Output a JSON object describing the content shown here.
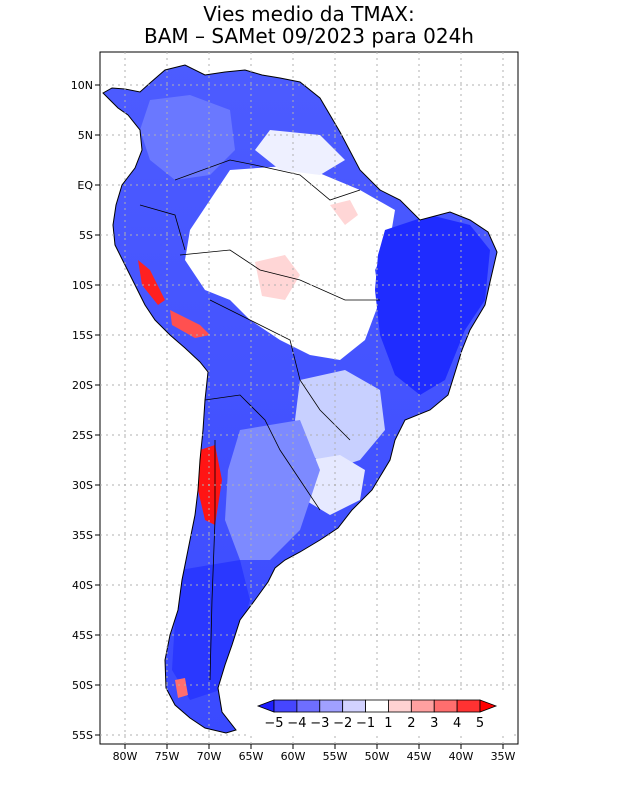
{
  "title": {
    "line1": "Vies medio da TMAX:",
    "line2": "BAM – SAMet 09/2023  para 024h"
  },
  "map": {
    "region": "South America",
    "variable": "TMAX mean bias",
    "lat_labels": [
      "10N",
      "5N",
      "EQ",
      "5S",
      "10S",
      "15S",
      "20S",
      "25S",
      "30S",
      "35S",
      "40S",
      "45S",
      "50S",
      "55S"
    ],
    "lon_labels": [
      "80W",
      "75W",
      "70W",
      "65W",
      "60W",
      "55W",
      "50W",
      "45W",
      "40W",
      "35W"
    ],
    "lat_range": [
      -56,
      13
    ],
    "lon_range": [
      -83,
      -35
    ]
  },
  "colorbar": {
    "labels": [
      "−5",
      "−4",
      "−3",
      "−2",
      "−1",
      "1",
      "2",
      "3",
      "4",
      "5"
    ],
    "colors": [
      "#1e1eff",
      "#4646ff",
      "#6e6eff",
      "#a0a0ff",
      "#d2d2ff",
      "#ffffff",
      "#ffd2d2",
      "#ffa0a0",
      "#ff6e6e",
      "#ff3232",
      "#ff0000"
    ],
    "color_names": [
      "-5 and below",
      "-5 to -4",
      "-4 to -3",
      "-3 to -2",
      "-2 to -1",
      "-1 to 1",
      "1 to 2",
      "2 to 3",
      "3 to 4",
      "4 to 5",
      "5 and above"
    ]
  },
  "colors": {
    "strong_cold": "#2233ff",
    "moderate_cold": "#5a6bff",
    "light_cold": "#a8b4ff",
    "neutral": "#ffffff",
    "light_warm": "#ffd0d0",
    "strong_warm": "#ff1a1a",
    "grid": "#b0b0b0"
  }
}
